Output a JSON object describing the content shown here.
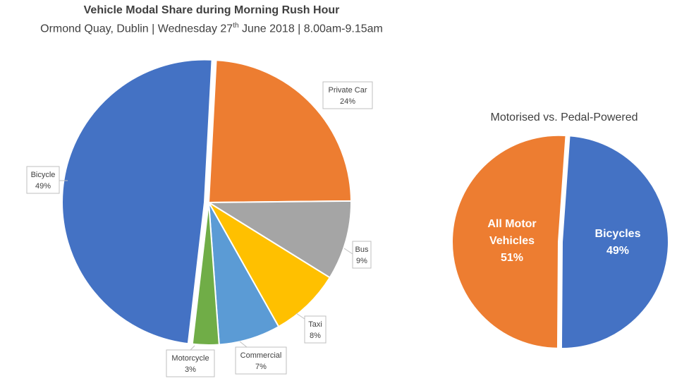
{
  "title": "Vehicle Modal Share during Morning Rush Hour",
  "subtitle_pre": "Ormond Quay, Dublin | Wednesday 27",
  "subtitle_sup": "th",
  "subtitle_post": " June 2018 | 8.00am-9.15am",
  "colors": {
    "bicycle": "#4472C4",
    "private_car": "#ED7D31",
    "bus": "#A5A5A5",
    "taxi": "#FFC000",
    "commercial": "#5B9BD5",
    "motorcycle": "#70AD47"
  },
  "chart_data": [
    {
      "type": "pie",
      "title": "Vehicle Modal Share during Morning Rush Hour",
      "slices": [
        {
          "label": "Private Car",
          "value_label": "24%",
          "value": 24,
          "color": "#ED7D31"
        },
        {
          "label": "Bus",
          "value_label": "9%",
          "value": 9,
          "color": "#A5A5A5"
        },
        {
          "label": "Taxi",
          "value_label": "8%",
          "value": 8,
          "color": "#FFC000"
        },
        {
          "label": "Commercial",
          "value_label": "7%",
          "value": 7,
          "color": "#5B9BD5"
        },
        {
          "label": "Motorcycle",
          "value_label": "3%",
          "value": 3,
          "color": "#70AD47"
        },
        {
          "label": "Bicycle",
          "value_label": "49%",
          "value": 49,
          "color": "#4472C4"
        }
      ]
    },
    {
      "type": "pie",
      "title": "Motorised vs. Pedal-Powered",
      "slices": [
        {
          "label_lines": [
            "Bicycles"
          ],
          "value_label": "49%",
          "value": 49,
          "color": "#4472C4"
        },
        {
          "label_lines": [
            "All Motor",
            "Vehicles"
          ],
          "value_label": "51%",
          "value": 51,
          "color": "#ED7D31"
        }
      ]
    }
  ]
}
